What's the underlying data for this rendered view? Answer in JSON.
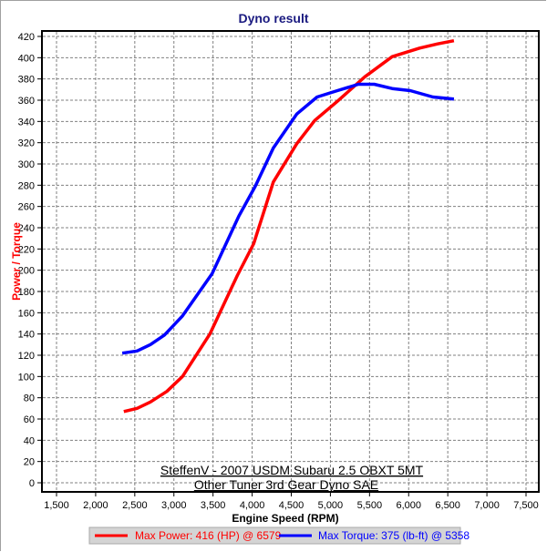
{
  "chart_data": {
    "type": "line",
    "title": "Dyno result",
    "xlabel": "Engine Speed (RPM)",
    "ylabel": "Power / Torque",
    "xlim": [
      1500,
      7500
    ],
    "ylim": [
      0,
      420
    ],
    "xticks": [
      1500,
      2000,
      2500,
      3000,
      3500,
      4000,
      4500,
      5000,
      5500,
      6000,
      6500,
      7000,
      7500
    ],
    "xtick_labels": [
      "1,500",
      "2,000",
      "2,500",
      "3,000",
      "3,500",
      "4,000",
      "4,500",
      "5,000",
      "5,500",
      "6,000",
      "6,500",
      "7,000",
      "7,500"
    ],
    "yticks": [
      0,
      20,
      40,
      60,
      80,
      100,
      120,
      140,
      160,
      180,
      200,
      220,
      240,
      260,
      280,
      300,
      320,
      340,
      360,
      380,
      400,
      420
    ],
    "grid": true,
    "annotations": [
      "SteffenV - 2007 USDM Subaru 2.5 OBXT 5MT",
      "Other Tuner 3rd Gear Dyno SAE"
    ],
    "legend_placement": "bottom",
    "series": [
      {
        "name": "Max Power: 416 (HP) @ 6579",
        "color": "#ff0000",
        "x": [
          2360,
          2530,
          2700,
          2910,
          3110,
          3460,
          3810,
          4020,
          4270,
          4570,
          4800,
          5090,
          5440,
          5790,
          6140,
          6370,
          6579
        ],
        "y": [
          67,
          70,
          76,
          86,
          100,
          140,
          195,
          225,
          283,
          319,
          341,
          359,
          382,
          401,
          409,
          413,
          416
        ]
      },
      {
        "name": "Max Torque: 375 (lb-ft) @ 5358",
        "color": "#0000ff",
        "x": [
          2340,
          2530,
          2700,
          2880,
          3110,
          3490,
          3830,
          4040,
          4270,
          4570,
          4830,
          5090,
          5358,
          5560,
          5790,
          6020,
          6310,
          6579
        ],
        "y": [
          122,
          124,
          130,
          139,
          157,
          197,
          251,
          279,
          315,
          347,
          363,
          369,
          375,
          375,
          371,
          369,
          363,
          361
        ]
      }
    ]
  }
}
